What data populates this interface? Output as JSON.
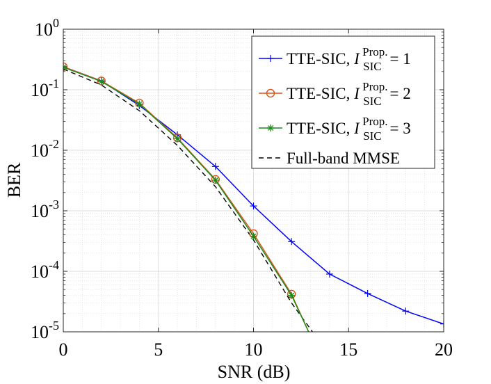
{
  "chart_data": {
    "type": "line",
    "xlabel": "SNR (dB)",
    "ylabel": "BER",
    "xlim": [
      0,
      20
    ],
    "ylim_log10": [
      -5,
      0
    ],
    "yscale": "log",
    "grid": true,
    "minor_grid": true,
    "legend_position": "top-right",
    "x_ticks": [
      "0",
      "5",
      "10",
      "15",
      "20"
    ],
    "y_ticks": [
      {
        "base": "10",
        "exp": "0"
      },
      {
        "base": "10",
        "exp": "-1"
      },
      {
        "base": "10",
        "exp": "-2"
      },
      {
        "base": "10",
        "exp": "-3"
      },
      {
        "base": "10",
        "exp": "-4"
      },
      {
        "base": "10",
        "exp": "-5"
      }
    ],
    "series": [
      {
        "name": "TTE-SIC, I_SIC^Prop. = 1",
        "legend": {
          "prefix": "TTE-SIC, ",
          "var": "I",
          "sup": "Prop.",
          "sub": "SIC",
          "suffix": "= 1"
        },
        "color": "#0000ff",
        "marker": "plus",
        "dash": "solid",
        "x": [
          0,
          2,
          4,
          6,
          8,
          10,
          12,
          14,
          16,
          18,
          20
        ],
        "y": [
          0.24,
          0.14,
          0.055,
          0.018,
          0.0054,
          0.0012,
          0.00031,
          9e-05,
          4.3e-05,
          2.2e-05,
          1.35e-05
        ]
      },
      {
        "name": "TTE-SIC, I_SIC^Prop. = 2",
        "legend": {
          "prefix": "TTE-SIC, ",
          "var": "I",
          "sup": "Prop.",
          "sub": "SIC",
          "suffix": "= 2"
        },
        "color": "#d95319",
        "marker": "circle",
        "dash": "solid",
        "x": [
          0,
          2,
          4,
          6,
          8,
          10,
          12,
          12.9
        ],
        "y": [
          0.24,
          0.14,
          0.06,
          0.016,
          0.0033,
          0.00042,
          4.2e-05,
          1e-05
        ]
      },
      {
        "name": "TTE-SIC, I_SIC^Prop. = 3",
        "legend": {
          "prefix": "TTE-SIC, ",
          "var": "I",
          "sup": "Prop.",
          "sub": "SIC",
          "suffix": "= 3"
        },
        "color": "#1a8c1a",
        "marker": "star",
        "dash": "solid",
        "x": [
          0,
          2,
          4,
          6,
          8,
          10,
          12,
          12.9
        ],
        "y": [
          0.235,
          0.137,
          0.058,
          0.0155,
          0.0032,
          0.00038,
          4e-05,
          1e-05
        ]
      },
      {
        "name": "Full-band MMSE",
        "legend": {
          "prefix": "Full-band MMSE",
          "var": "",
          "sup": "",
          "sub": "",
          "suffix": ""
        },
        "color": "#000000",
        "marker": "none",
        "dash": "dashed",
        "x": [
          0,
          2,
          4,
          6,
          8,
          10,
          12,
          13.1
        ],
        "y": [
          0.22,
          0.12,
          0.045,
          0.012,
          0.0025,
          0.00033,
          3e-05,
          1e-05
        ]
      }
    ]
  }
}
